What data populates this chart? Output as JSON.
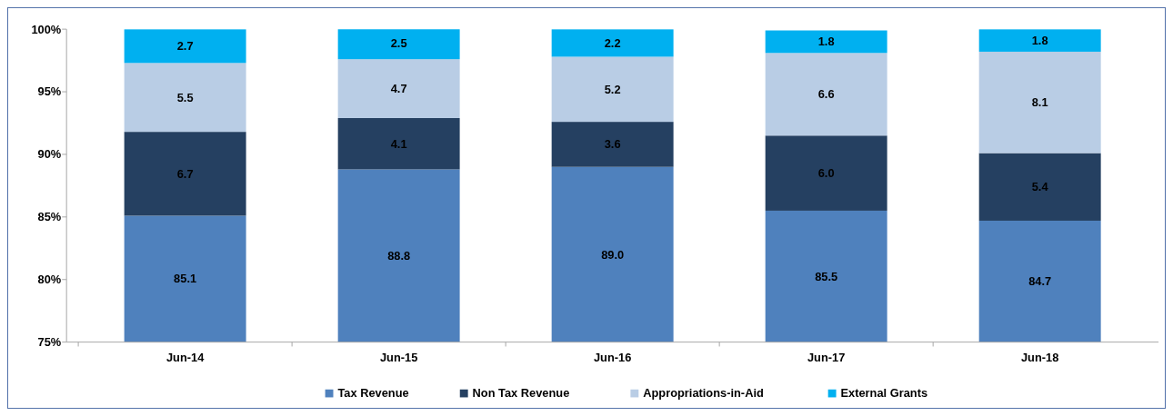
{
  "chart_data": {
    "type": "bar",
    "stacked": true,
    "categories": [
      "Jun-14",
      "Jun-15",
      "Jun-16",
      "Jun-17",
      "Jun-18"
    ],
    "series": [
      {
        "name": "Tax Revenue",
        "color": "#4f81bd",
        "values": [
          85.1,
          88.8,
          89.0,
          85.5,
          84.7
        ],
        "value_labels": [
          "85.1",
          "88.8",
          "89.0",
          "85.5",
          "84.7"
        ]
      },
      {
        "name": "Non Tax Revenue",
        "color": "#254061",
        "base": [
          85.1,
          88.8,
          89.0,
          85.5,
          84.7
        ],
        "values": [
          6.7,
          4.1,
          3.6,
          6.0,
          5.4
        ],
        "value_labels": [
          "6.7",
          "4.1",
          "3.6",
          "6.0",
          "5.4"
        ]
      },
      {
        "name": "Appropriations-in-Aid",
        "color": "#b9cde5",
        "base": [
          91.8,
          92.9,
          92.6,
          91.5,
          90.1
        ],
        "values": [
          5.5,
          4.7,
          5.2,
          6.6,
          8.1
        ],
        "value_labels": [
          "5.5",
          "4.7",
          "5.2",
          "6.6",
          "8.1"
        ]
      },
      {
        "name": "External Grants",
        "color": "#00b0f0",
        "base": [
          97.3,
          97.6,
          97.8,
          98.1,
          98.2
        ],
        "values": [
          2.7,
          2.5,
          2.2,
          1.8,
          1.8
        ],
        "value_labels": [
          "2.7",
          "2.5",
          "2.2",
          "1.8",
          "1.8"
        ]
      }
    ],
    "ylim": [
      75,
      100
    ],
    "yticks": [
      {
        "value": 75,
        "label": "75%"
      },
      {
        "value": 80,
        "label": "80%"
      },
      {
        "value": 85,
        "label": "85%"
      },
      {
        "value": 90,
        "label": "90%"
      },
      {
        "value": 95,
        "label": "95%"
      },
      {
        "value": 100,
        "label": "100%"
      }
    ],
    "grid": false,
    "legend": "bottom"
  }
}
